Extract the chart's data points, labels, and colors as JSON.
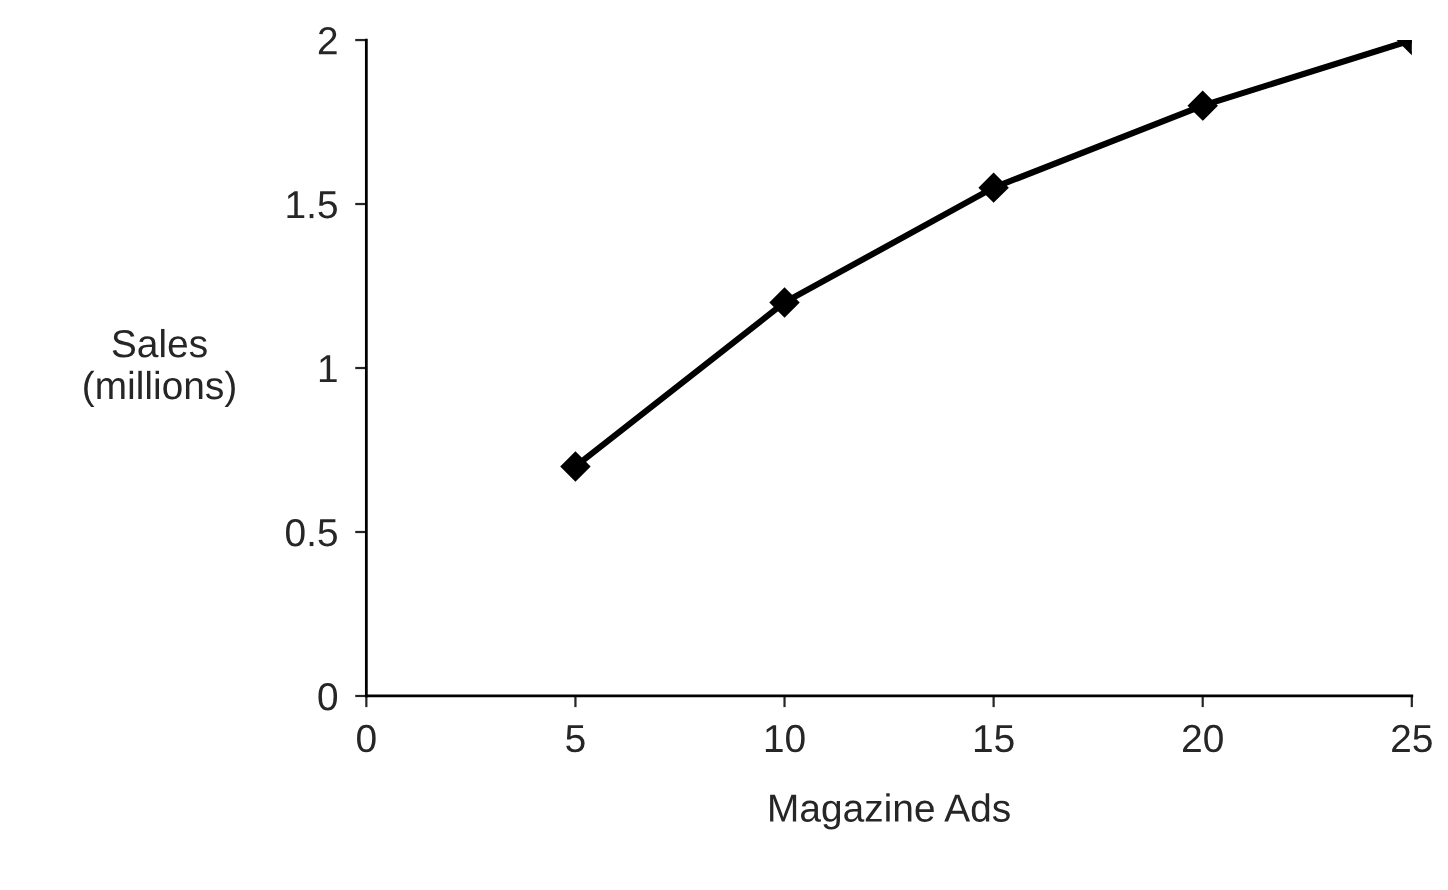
{
  "chart_data": {
    "type": "line",
    "xlabel": "Magazine Ads",
    "ylabel": "Sales\n(millions)",
    "x": [
      5,
      10,
      15,
      20,
      25
    ],
    "series": [
      {
        "color": "#000000",
        "values": [
          0.7,
          1.2,
          1.55,
          1.8,
          2.0
        ]
      }
    ],
    "xlim": [
      0,
      25
    ],
    "ylim": [
      0,
      2
    ],
    "xticks": [
      0,
      5,
      10,
      15,
      20,
      25
    ],
    "yticks": [
      0,
      0.5,
      1,
      1.5,
      2
    ],
    "marker": "diamond",
    "line_style": "solid",
    "grid": false,
    "legend": false
  }
}
